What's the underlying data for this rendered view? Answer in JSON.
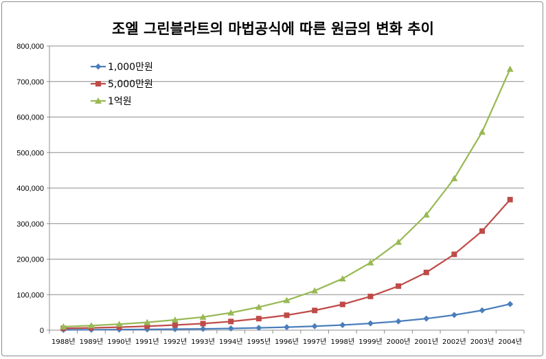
{
  "chart_data": {
    "type": "line",
    "title": "조엘 그린블라트의 마법공식에 따른 원금의 변화 추이",
    "categories": [
      "1988년",
      "1989년",
      "1990년",
      "1991년",
      "1992년",
      "1993년",
      "1994년",
      "1995년",
      "1996년",
      "1997년",
      "1998년",
      "1999년",
      "2000년",
      "2001년",
      "2002년",
      "2003년",
      "2004년"
    ],
    "ylim": [
      0,
      800000
    ],
    "yticks": [
      0,
      100000,
      200000,
      300000,
      400000,
      500000,
      600000,
      700000,
      800000
    ],
    "ytick_labels": [
      "0",
      "100,000",
      "200,000",
      "300,000",
      "400,000",
      "500,000",
      "600,000",
      "700,000",
      "800,000"
    ],
    "grid": "horizontal",
    "legend_position": "top-left",
    "series": [
      {
        "name": "1,000만원",
        "color": "#4a7ebb",
        "marker": "diamond",
        "values": [
          1000,
          1300,
          1700,
          2200,
          2900,
          3700,
          4900,
          6500,
          8400,
          11100,
          14500,
          19000,
          24800,
          32500,
          42700,
          55800,
          73500
        ]
      },
      {
        "name": "5,000만원",
        "color": "#be4b48",
        "marker": "square",
        "values": [
          5000,
          6500,
          8500,
          11000,
          14500,
          18500,
          24500,
          32500,
          42000,
          55500,
          72500,
          95000,
          124000,
          162500,
          213500,
          279000,
          367500
        ]
      },
      {
        "name": "1억원",
        "color": "#98b954",
        "marker": "triangle",
        "values": [
          10000,
          13000,
          17000,
          22000,
          29000,
          37000,
          49000,
          65000,
          84000,
          111000,
          145000,
          190000,
          248000,
          325000,
          427000,
          558000,
          735000
        ]
      }
    ]
  }
}
